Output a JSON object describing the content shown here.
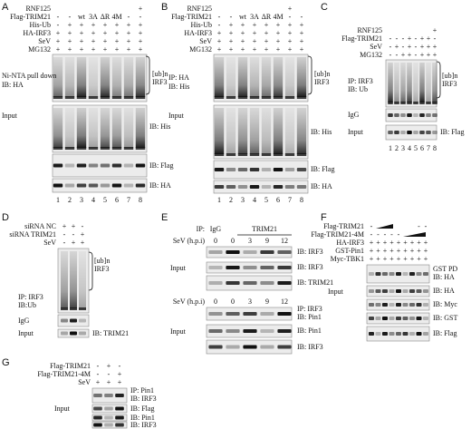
{
  "panels": [
    {
      "letter": "A",
      "rows": [
        {
          "label": "RNF125",
          "signs": [
            "+"
          ]
        },
        {
          "label": "Flag-TRIM21",
          "signs": [
            "-",
            "-",
            "wt",
            "3A",
            "ΔR",
            "4M",
            "-",
            "-"
          ]
        },
        {
          "label": "His-Ub",
          "signs": [
            "-",
            "+",
            "+",
            "+",
            "+",
            "+",
            "+",
            "+"
          ]
        },
        {
          "label": "HA-IRF3",
          "signs": [
            "+",
            "+",
            "+",
            "+",
            "+",
            "+",
            "+",
            "+"
          ]
        },
        {
          "label": "SeV",
          "signs": [
            "+",
            "+",
            "+",
            "+",
            "+",
            "+",
            "+",
            "+"
          ]
        },
        {
          "label": "MG132",
          "signs": [
            "+",
            "+",
            "+",
            "+",
            "+",
            "+",
            "+",
            "+"
          ]
        }
      ],
      "labels": [
        "Ni-NTA pull down",
        "IB: HA",
        "[ub]n",
        "IRF3",
        "Input",
        "IB: His",
        "IB: Flag",
        "IB: HA"
      ],
      "lanes": [
        1,
        2,
        3,
        4,
        5,
        6,
        7,
        8
      ]
    },
    {
      "letter": "B",
      "rows": [
        {
          "label": "RNF125",
          "signs": [
            "+"
          ]
        },
        {
          "label": "Flag-TRIM21",
          "signs": [
            "-",
            "-",
            "wt",
            "3A",
            "ΔR",
            "4M",
            "-",
            "-"
          ]
        },
        {
          "label": "His-Ub",
          "signs": [
            "-",
            "+",
            "+",
            "+",
            "+",
            "+",
            "+",
            "+"
          ]
        },
        {
          "label": "HA-IRF3",
          "signs": [
            "+",
            "+",
            "+",
            "+",
            "+",
            "+",
            "+",
            "+"
          ]
        },
        {
          "label": "SeV",
          "signs": [
            "+",
            "+",
            "+",
            "+",
            "+",
            "+",
            "+",
            "+"
          ]
        },
        {
          "label": "MG132",
          "signs": [
            "+",
            "+",
            "+",
            "+",
            "+",
            "+",
            "+",
            "+"
          ]
        }
      ],
      "labels": [
        "IP: HA",
        "IB: His",
        "[ub]n",
        "IRF3",
        "Input",
        "IB: His",
        "IB: Flag",
        "IB: HA"
      ],
      "lanes": [
        1,
        2,
        3,
        4,
        5,
        6,
        7,
        8
      ]
    },
    {
      "letter": "C",
      "rows": [
        {
          "label": "RNF125",
          "signs": [
            "+"
          ]
        },
        {
          "label": "Flag-TRIM21",
          "signs": [
            "-",
            "-",
            "-",
            "+",
            "-",
            "+",
            "+",
            "-"
          ]
        },
        {
          "label": "SeV",
          "signs": [
            "-",
            "+",
            "-",
            "+",
            "-",
            "+",
            "+",
            "+"
          ]
        },
        {
          "label": "MG132",
          "signs": [
            "-",
            "-",
            "+",
            "+",
            "-",
            "+",
            "+",
            "+"
          ]
        }
      ],
      "labels": [
        "IP: IRF3",
        "IB: Ub",
        "[ub]n",
        "IRF3",
        "IgG",
        "Input",
        "IB: Flag"
      ],
      "lanes": [
        1,
        2,
        3,
        4,
        5,
        6,
        7,
        8
      ]
    },
    {
      "letter": "D",
      "rows": [
        {
          "label": "siRNA NC",
          "signs": [
            "+",
            "+",
            "-"
          ]
        },
        {
          "label": "siRNA TRIM21",
          "signs": [
            "-",
            "-",
            "+"
          ]
        },
        {
          "label": "SeV",
          "signs": [
            "-",
            "+",
            "+"
          ]
        }
      ],
      "labels": [
        "[ub]n",
        "IRF3",
        "IP: IRF3",
        "IB:Ub",
        "IgG",
        "Input",
        "IB: TRIM21"
      ]
    },
    {
      "letter": "E",
      "rows": [
        {
          "label": "IP:",
          "signs": [
            "IgG",
            "TRIM21"
          ]
        },
        {
          "label": "SeV (h.p.i)",
          "signs": [
            0,
            0,
            3,
            9,
            12
          ]
        },
        {
          "label": "SeV (h.p.i)",
          "signs": [
            0,
            0,
            3,
            9,
            12
          ]
        }
      ],
      "labels": [
        "IB: IRF3",
        "Input",
        "IB: IRF3",
        "IB: TRIM21",
        "IP: IRF3",
        "IB: Pin1",
        "Input",
        "IB: Pin1",
        "IB: IRF3"
      ]
    },
    {
      "letter": "F",
      "rows": [
        {
          "label": "Flag-TRIM21",
          "signs": [
            "-",
            "-",
            "-"
          ]
        },
        {
          "label": "Flag-TRIM21-4M",
          "signs": [
            "-",
            "-",
            "-",
            "-",
            "-"
          ]
        },
        {
          "label": "HA-IRF3",
          "signs": [
            "+",
            "+",
            "+",
            "+",
            "+",
            "+",
            "+",
            "+",
            "+"
          ]
        },
        {
          "label": "GST-Pin1",
          "signs": [
            "+",
            "+",
            "+",
            "+",
            "+",
            "+",
            "+",
            "+",
            "+"
          ]
        },
        {
          "label": "Myc-TBK1",
          "signs": [
            "+",
            "+",
            "+",
            "+",
            "+",
            "+",
            "+",
            "+",
            "+"
          ]
        }
      ],
      "labels": [
        "GST PD",
        "IB: HA",
        "Input",
        "IB: HA",
        "IB: Myc",
        "IB: GST",
        "IB: Flag"
      ]
    },
    {
      "letter": "G",
      "rows": [
        {
          "label": "Flag-TRIM21",
          "signs": [
            "-",
            "+",
            "-"
          ]
        },
        {
          "label": "Flag-TRIM21-4M",
          "signs": [
            "-",
            "-",
            "+"
          ]
        },
        {
          "label": "SeV",
          "signs": [
            "+",
            "+",
            "+"
          ]
        }
      ],
      "labels": [
        "IP: Pin1",
        "IB: IRF3",
        "Input",
        "IB: Flag",
        "IB: Pin1",
        "IB: IRF3"
      ]
    }
  ]
}
